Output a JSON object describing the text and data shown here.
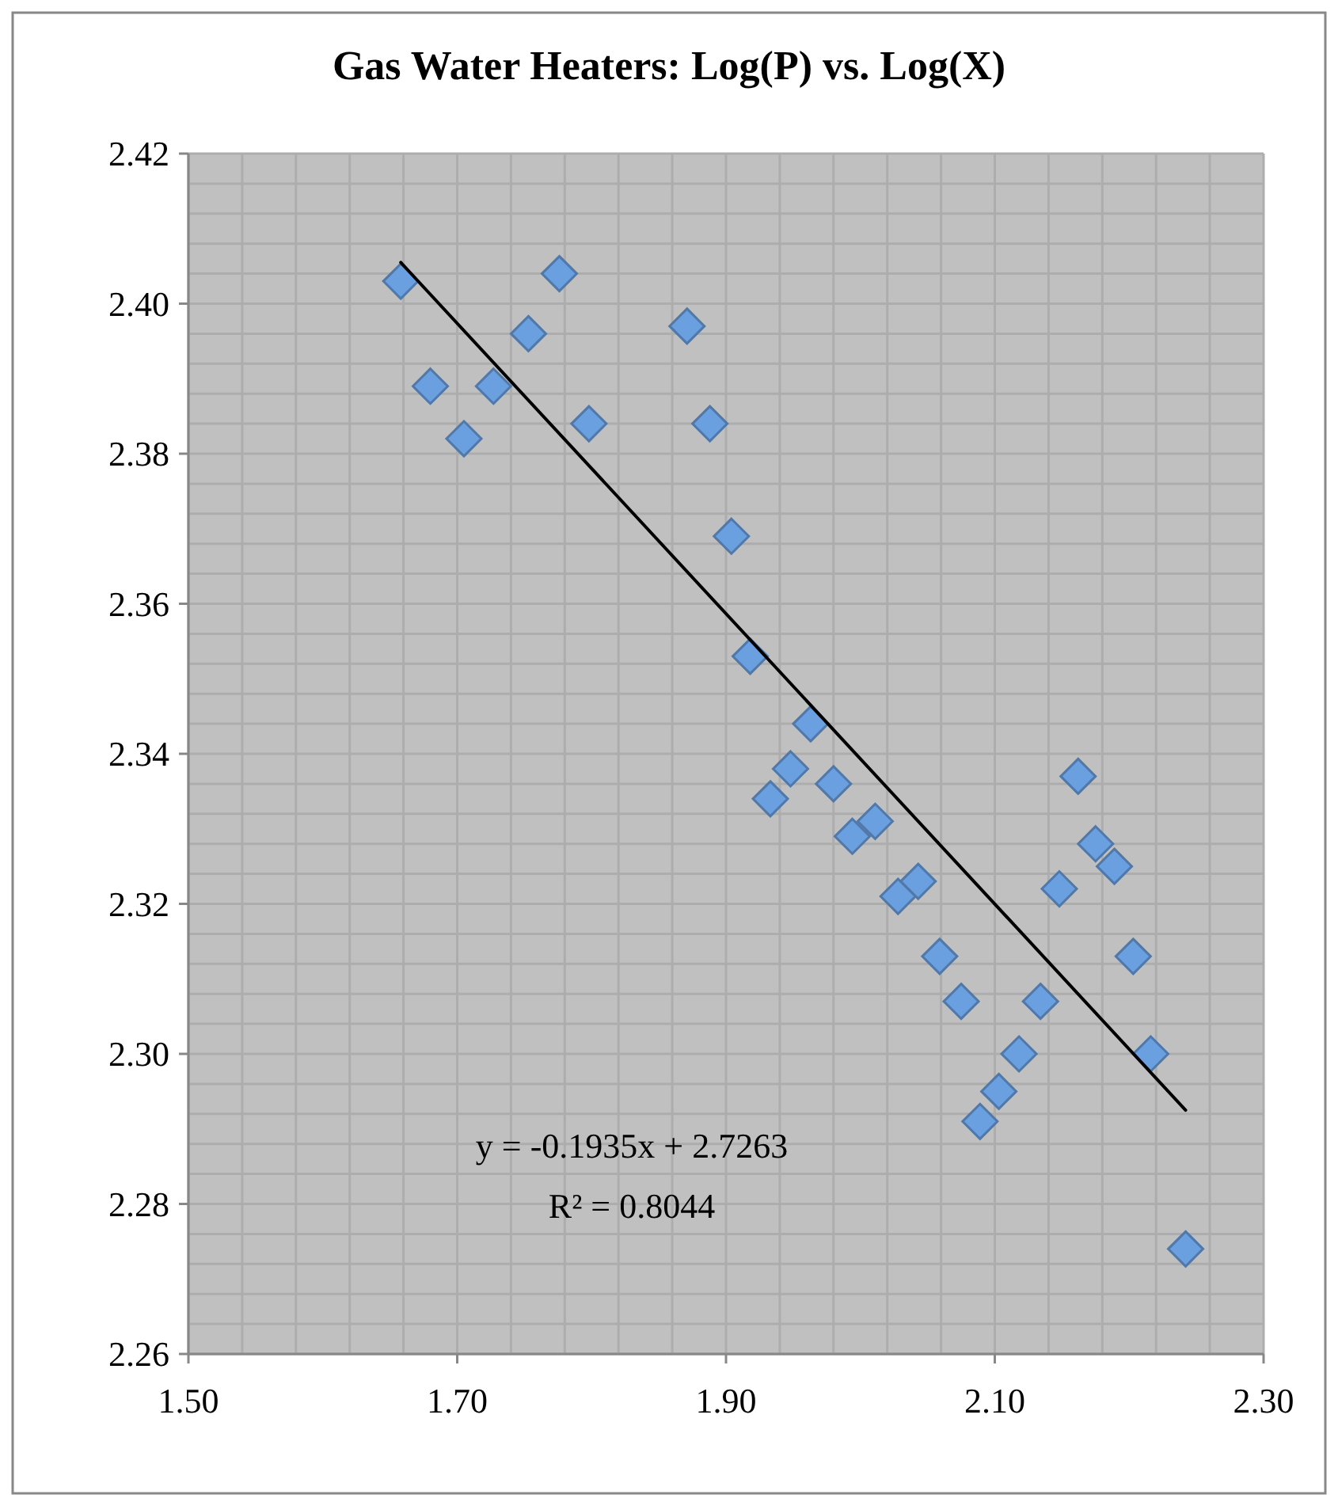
{
  "chart_data": {
    "type": "scatter",
    "title": "Gas Water Heaters: Log(P) vs. Log(X)",
    "x": [
      1.658,
      1.68,
      1.705,
      1.727,
      1.753,
      1.776,
      1.798,
      1.871,
      1.888,
      1.904,
      1.918,
      1.933,
      1.948,
      1.963,
      1.98,
      1.994,
      2.011,
      2.028,
      2.043,
      2.059,
      2.075,
      2.089,
      2.103,
      2.118,
      2.134,
      2.148,
      2.162,
      2.175,
      2.189,
      2.203,
      2.216,
      2.242
    ],
    "series": [
      {
        "color": "#6a9fe0",
        "marker": "diamond",
        "values": [
          2.403,
          2.389,
          2.382,
          2.389,
          2.396,
          2.404,
          2.384,
          2.397,
          2.384,
          2.369,
          2.353,
          2.334,
          2.338,
          2.344,
          2.336,
          2.329,
          2.331,
          2.321,
          2.323,
          2.313,
          2.307,
          2.291,
          2.295,
          2.3,
          2.307,
          2.322,
          2.337,
          2.328,
          2.325,
          2.313,
          2.3,
          2.274
        ]
      },
      {
        "type": "line",
        "color": "#000000",
        "line_style": "solid",
        "x": [
          1.658,
          2.242
        ],
        "values": [
          2.4055,
          2.2925
        ]
      }
    ],
    "xlim": [
      1.5,
      2.3
    ],
    "xticks": [
      {
        "value": 1.5,
        "label": "1.50"
      },
      {
        "value": 1.7,
        "label": "1.70"
      },
      {
        "value": 1.9,
        "label": "1.90"
      },
      {
        "value": 2.1,
        "label": "2.10"
      },
      {
        "value": 2.3,
        "label": "2.30"
      }
    ],
    "ylim": [
      2.26,
      2.42
    ],
    "yticks": [
      2.26,
      2.28,
      {
        "value": 2.3,
        "label": "2.30"
      },
      2.32,
      2.34,
      2.36,
      2.38,
      {
        "value": 2.4,
        "label": "2.40"
      },
      2.42
    ],
    "grid": true,
    "annotations": [
      "y = -0.1935x + 2.7263",
      "R² = 0.8044"
    ]
  }
}
